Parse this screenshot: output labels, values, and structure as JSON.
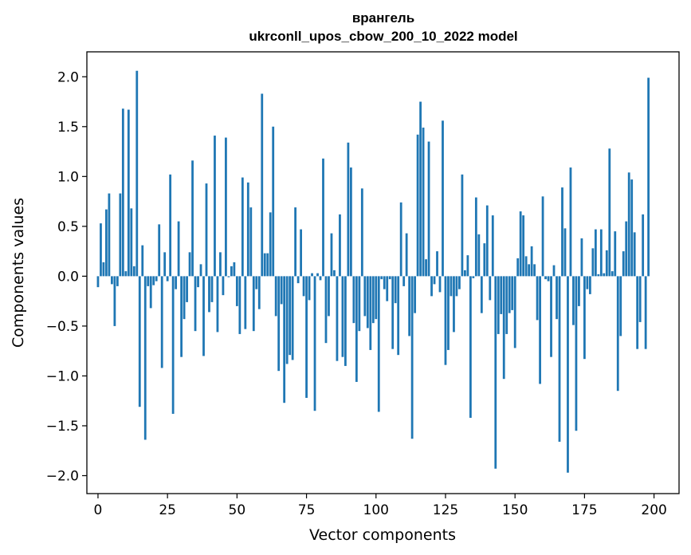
{
  "chart_data": {
    "type": "bar",
    "title": "врангель",
    "subtitle": "ukrconll_upos_cbow_200_10_2022 model",
    "xlabel": "Vector components",
    "ylabel": "Components values",
    "xlim": [
      -4,
      209
    ],
    "ylim": [
      -2.18,
      2.25
    ],
    "xticks": [
      0,
      25,
      50,
      75,
      100,
      125,
      150,
      175,
      200
    ],
    "yticks": [
      -2.0,
      -1.5,
      -1.0,
      -0.5,
      0.0,
      0.5,
      1.0,
      1.5,
      2.0
    ],
    "ytick_labels": [
      "−2.0",
      "−1.5",
      "−1.0",
      "−0.5",
      "0.0",
      "0.5",
      "1.0",
      "1.5",
      "2.0"
    ],
    "xtick_labels": [
      "0",
      "25",
      "50",
      "75",
      "100",
      "125",
      "150",
      "175",
      "200"
    ],
    "bar_color": "#1f77b4",
    "values": [
      -0.11,
      0.53,
      0.14,
      0.67,
      0.83,
      -0.08,
      -0.5,
      -0.1,
      0.83,
      1.68,
      0.05,
      1.67,
      0.68,
      0.1,
      2.06,
      -1.31,
      0.31,
      -1.64,
      -0.1,
      -0.32,
      -0.09,
      -0.05,
      0.52,
      -0.92,
      0.24,
      -0.05,
      1.02,
      -1.38,
      -0.13,
      0.55,
      -0.81,
      -0.43,
      -0.26,
      0.24,
      1.16,
      -0.55,
      -0.11,
      0.12,
      -0.8,
      0.93,
      -0.36,
      -0.26,
      1.41,
      -0.56,
      0.24,
      -0.19,
      1.39,
      -0.01,
      0.1,
      0.14,
      -0.3,
      -0.58,
      0.99,
      -0.53,
      0.94,
      0.69,
      -0.55,
      -0.13,
      -0.33,
      1.83,
      0.23,
      0.23,
      0.64,
      1.5,
      -0.4,
      -0.95,
      -0.28,
      -1.27,
      -0.88,
      -0.79,
      -0.84,
      0.69,
      -0.07,
      0.47,
      -0.2,
      -1.22,
      -0.24,
      0.03,
      -1.35,
      0.03,
      -0.04,
      1.18,
      -0.67,
      -0.4,
      0.43,
      0.06,
      -0.85,
      0.62,
      -0.81,
      -0.9,
      1.34,
      1.09,
      -0.47,
      -1.06,
      -0.55,
      0.88,
      -0.4,
      -0.52,
      -0.74,
      -0.47,
      -0.43,
      -1.36,
      -0.03,
      -0.13,
      -0.25,
      -0.03,
      -0.73,
      -0.27,
      -0.79,
      0.74,
      -0.1,
      0.43,
      -0.6,
      -1.63,
      -0.37,
      1.42,
      1.75,
      1.49,
      0.17,
      1.35,
      -0.2,
      -0.08,
      0.25,
      -0.16,
      1.56,
      -0.89,
      -0.74,
      -0.2,
      -0.56,
      -0.2,
      -0.13,
      1.02,
      0.06,
      0.21,
      -1.42,
      -0.02,
      0.79,
      0.42,
      -0.37,
      0.33,
      0.71,
      -0.24,
      0.61,
      -1.93,
      -0.58,
      -0.38,
      -1.03,
      -0.58,
      -0.37,
      -0.34,
      -0.72,
      0.18,
      0.65,
      0.61,
      0.2,
      0.12,
      0.3,
      0.12,
      -0.44,
      -1.08,
      0.8,
      -0.03,
      -0.05,
      -0.81,
      0.11,
      -0.43,
      -1.66,
      0.89,
      0.48,
      -1.97,
      1.09,
      -0.49,
      -1.55,
      -0.3,
      0.38,
      -0.83,
      -0.13,
      -0.18,
      0.28,
      0.47,
      0.02,
      0.47,
      0.03,
      0.26,
      1.28,
      0.05,
      0.45,
      -1.15,
      -0.6,
      0.25,
      0.55,
      1.04,
      0.97,
      0.44,
      -0.73,
      -0.46,
      0.62,
      -0.73,
      1.99
    ]
  }
}
